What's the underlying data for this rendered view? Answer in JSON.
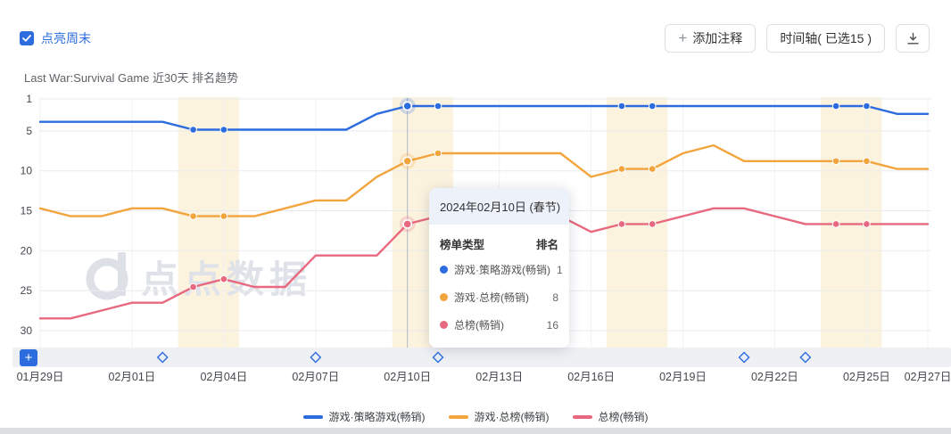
{
  "header": {
    "weekend_checkbox": {
      "label": "点亮周末",
      "checked": true
    },
    "add_annotation_button": "添加注释",
    "timeline_button": "时间轴( 已选15 )"
  },
  "title": "Last War:Survival Game 近30天 排名趋势",
  "watermark": "点点数据",
  "timeline_add_button": "+",
  "colors": {
    "blue": "#2d6cdf",
    "orange": "#f2a43d",
    "pink": "#e8697f",
    "weekend_band": "#fcf3df",
    "grid": "#e9ebee",
    "vgrid": "#f1f2f4",
    "axis_strip": "#eef0f4",
    "crosshair": "#b4b7bc",
    "label": "#44474d"
  },
  "chart_data": {
    "type": "line",
    "n_points": 30,
    "x_ticks": [
      {
        "i": 0,
        "label": "01月29日"
      },
      {
        "i": 3,
        "label": "02月01日"
      },
      {
        "i": 6,
        "label": "02月04日"
      },
      {
        "i": 9,
        "label": "02月07日"
      },
      {
        "i": 12,
        "label": "02月10日"
      },
      {
        "i": 15,
        "label": "02月13日"
      },
      {
        "i": 18,
        "label": "02月16日"
      },
      {
        "i": 21,
        "label": "02月19日"
      },
      {
        "i": 24,
        "label": "02月22日"
      },
      {
        "i": 27,
        "label": "02月25日"
      },
      {
        "i": 29,
        "label": "02月27日"
      }
    ],
    "y_axis": {
      "inverted": true,
      "ticks": [
        1,
        5,
        10,
        15,
        20,
        25,
        30
      ],
      "range": [
        1,
        30
      ],
      "label": "排名"
    },
    "series": [
      {
        "name": "游戏·策略游戏(畅销)",
        "color": "#2d6cdf",
        "values": [
          3,
          3,
          3,
          3,
          3,
          4,
          4,
          4,
          4,
          4,
          4,
          2,
          1,
          1,
          1,
          1,
          1,
          1,
          1,
          1,
          1,
          1,
          1,
          1,
          1,
          1,
          1,
          1,
          2,
          2
        ]
      },
      {
        "name": "游戏·总榜(畅销)",
        "color": "#f2a43d",
        "values": [
          14,
          15,
          15,
          14,
          14,
          15,
          15,
          15,
          14,
          13,
          13,
          10,
          8,
          7,
          7,
          7,
          7,
          7,
          10,
          9,
          9,
          7,
          6,
          8,
          8,
          8,
          8,
          8,
          9,
          9
        ]
      },
      {
        "name": "总榜(畅销)",
        "color": "#e8697f",
        "values": [
          28,
          28,
          27,
          26,
          26,
          24,
          23,
          24,
          24,
          20,
          20,
          20,
          16,
          15,
          14,
          14,
          15,
          15,
          17,
          16,
          16,
          15,
          14,
          14,
          15,
          16,
          16,
          16,
          16,
          16
        ]
      }
    ],
    "weekend_ranges": [
      [
        5,
        6
      ],
      [
        12,
        13
      ],
      [
        19,
        20
      ],
      [
        26,
        27
      ]
    ],
    "highlight_index": 12,
    "timeline_marker_indices": [
      4,
      9,
      13,
      23,
      25
    ]
  },
  "tooltip": {
    "title": "2024年02月10日 (春节)",
    "columns": {
      "type": "榜单类型",
      "rank": "排名"
    },
    "rows": [
      {
        "name": "游戏·策略游戏(畅销)",
        "rank": "1"
      },
      {
        "name": "游戏·总榜(畅销)",
        "rank": "8"
      },
      {
        "name": "总榜(畅销)",
        "rank": "16"
      }
    ]
  },
  "legend": [
    {
      "label": "游戏·策略游戏(畅销)",
      "color": "#2d6cdf"
    },
    {
      "label": "游戏·总榜(畅销)",
      "color": "#f2a43d"
    },
    {
      "label": "总榜(畅销)",
      "color": "#e8697f"
    }
  ]
}
